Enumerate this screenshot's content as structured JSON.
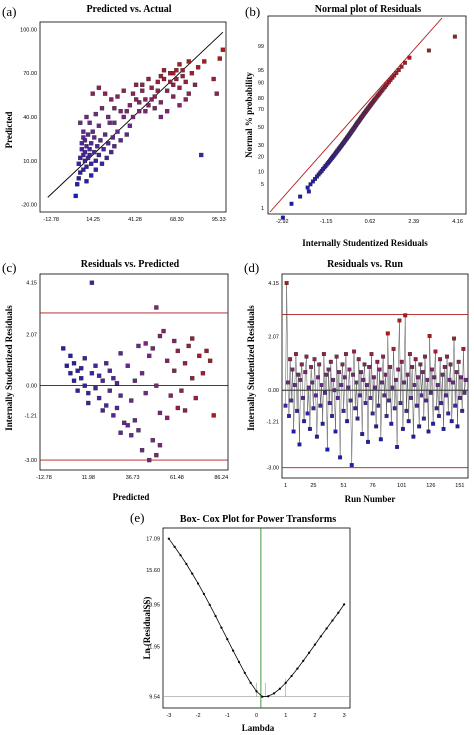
{
  "colors": {
    "low": "#1c1cb0",
    "mid": "#6a2a8a",
    "high": "#b01818",
    "refline": "#b01818",
    "diag": "#000000",
    "green": "#2e8b2e",
    "gray": "#9a9a9a"
  },
  "chart_data": [
    {
      "panel": "(a)",
      "type": "scatter",
      "title": "Predicted vs. Actual",
      "xlabel": "",
      "ylabel": "Predicted",
      "xticks": [
        "-12.78",
        "14.25",
        "41.28",
        "68.30",
        "95.33"
      ],
      "yticks": [
        "100.00",
        "70.00",
        "40.00",
        "10.00",
        "-20.00"
      ],
      "xlim": [
        -20,
        100
      ],
      "ylim": [
        -25,
        105
      ],
      "points": [
        [
          3,
          -14
        ],
        [
          4,
          -6
        ],
        [
          5,
          -2
        ],
        [
          5,
          8
        ],
        [
          6,
          2
        ],
        [
          6,
          12
        ],
        [
          7,
          18
        ],
        [
          7,
          22
        ],
        [
          8,
          4
        ],
        [
          8,
          14
        ],
        [
          8,
          26
        ],
        [
          9,
          10
        ],
        [
          9,
          16
        ],
        [
          9,
          24
        ],
        [
          10,
          -4
        ],
        [
          10,
          6
        ],
        [
          10,
          20
        ],
        [
          11,
          12
        ],
        [
          11,
          28
        ],
        [
          12,
          14
        ],
        [
          12,
          18
        ],
        [
          13,
          0
        ],
        [
          13,
          8
        ],
        [
          13,
          22
        ],
        [
          14,
          30
        ],
        [
          15,
          16
        ],
        [
          15,
          26
        ],
        [
          16,
          4
        ],
        [
          16,
          10
        ],
        [
          17,
          20
        ],
        [
          18,
          34
        ],
        [
          18,
          14
        ],
        [
          19,
          24
        ],
        [
          20,
          8
        ],
        [
          21,
          18
        ],
        [
          22,
          28
        ],
        [
          23,
          12
        ],
        [
          24,
          22
        ],
        [
          25,
          36
        ],
        [
          26,
          16
        ],
        [
          27,
          26
        ],
        [
          28,
          20
        ],
        [
          30,
          30
        ],
        [
          32,
          24
        ],
        [
          34,
          40
        ],
        [
          36,
          28
        ],
        [
          38,
          34
        ],
        [
          14,
          56
        ],
        [
          18,
          60
        ],
        [
          22,
          56
        ],
        [
          26,
          52
        ],
        [
          30,
          54
        ],
        [
          34,
          58
        ],
        [
          28,
          46
        ],
        [
          38,
          48
        ],
        [
          40,
          56
        ],
        [
          42,
          62
        ],
        [
          44,
          50
        ],
        [
          46,
          58
        ],
        [
          48,
          52
        ],
        [
          50,
          48
        ],
        [
          52,
          60
        ],
        [
          54,
          54
        ],
        [
          56,
          64
        ],
        [
          58,
          50
        ],
        [
          60,
          66
        ],
        [
          62,
          58
        ],
        [
          64,
          70
        ],
        [
          66,
          62
        ],
        [
          68,
          72
        ],
        [
          70,
          60
        ],
        [
          72,
          68
        ],
        [
          66,
          54
        ],
        [
          70,
          48
        ],
        [
          74,
          64
        ],
        [
          76,
          56
        ],
        [
          62,
          44
        ],
        [
          58,
          40
        ],
        [
          54,
          46
        ],
        [
          48,
          44
        ],
        [
          78,
          70
        ],
        [
          80,
          62
        ],
        [
          82,
          74
        ],
        [
          70,
          76
        ],
        [
          60,
          72
        ],
        [
          74,
          52
        ],
        [
          64,
          64
        ],
        [
          68,
          66
        ],
        [
          56,
          58
        ],
        [
          72,
          72
        ],
        [
          52,
          52
        ],
        [
          44,
          44
        ],
        [
          40,
          40
        ],
        [
          36,
          44
        ],
        [
          86,
          78
        ],
        [
          92,
          66
        ],
        [
          94,
          56
        ],
        [
          96,
          80
        ],
        [
          84,
          14
        ],
        [
          98,
          86
        ],
        [
          76,
          78
        ],
        [
          66,
          70
        ],
        [
          58,
          68
        ],
        [
          50,
          66
        ],
        [
          46,
          62
        ],
        [
          42,
          52
        ],
        [
          12,
          36
        ],
        [
          10,
          40
        ],
        [
          8,
          30
        ],
        [
          6,
          36
        ],
        [
          16,
          42
        ],
        [
          20,
          46
        ],
        [
          24,
          40
        ],
        [
          28,
          36
        ],
        [
          32,
          44
        ]
      ]
    },
    {
      "panel": "(b)",
      "type": "scatter",
      "title": "Normal plot of Residuals",
      "xlabel": "Internally Studentized Residuals",
      "ylabel": "Normal % probability",
      "xticks": [
        "-2.92",
        "-1.15",
        "0.62",
        "2.39",
        "4.16"
      ],
      "yticks": [
        "99",
        "95",
        "90",
        "80",
        "70",
        "50",
        "30",
        "20",
        "10",
        "5",
        "1"
      ],
      "xlim": [
        -3.5,
        4.5
      ],
      "ylim": [
        -2.5,
        3.2
      ]
    },
    {
      "panel": "(c)",
      "type": "scatter",
      "title": "Residuals vs. Predicted",
      "xlabel": "Predicted",
      "ylabel": "Internally Studentized Residuals",
      "xticks": [
        "-12.78",
        "11.98",
        "36.73",
        "61.48",
        "86.24"
      ],
      "yticks": [
        "4.15",
        "2.07",
        "0.00",
        "-1.21",
        "-3.00"
      ],
      "xlim": [
        -15,
        90
      ],
      "ylim": [
        -3.4,
        4.5
      ],
      "refline": 2.93,
      "refline_low": -3.0,
      "points": [
        [
          14,
          4.15
        ],
        [
          50,
          3.15
        ],
        [
          2,
          1.2
        ],
        [
          4,
          0.9
        ],
        [
          6,
          0.6
        ],
        [
          8,
          0.3
        ],
        [
          10,
          0.0
        ],
        [
          12,
          -0.3
        ],
        [
          14,
          0.5
        ],
        [
          16,
          0.8
        ],
        [
          18,
          -0.5
        ],
        [
          20,
          0.2
        ],
        [
          22,
          -0.8
        ],
        [
          24,
          0.6
        ],
        [
          26,
          -1.2
        ],
        [
          28,
          0.1
        ],
        [
          30,
          -0.4
        ],
        [
          6,
          -0.2
        ],
        [
          8,
          0.7
        ],
        [
          10,
          1.1
        ],
        [
          12,
          -0.7
        ],
        [
          16,
          -0.1
        ],
        [
          18,
          0.4
        ],
        [
          20,
          -1.0
        ],
        [
          22,
          0.9
        ],
        [
          24,
          -0.2
        ],
        [
          26,
          0.3
        ],
        [
          28,
          -0.9
        ],
        [
          30,
          1.3
        ],
        [
          32,
          -1.5
        ],
        [
          34,
          0.8
        ],
        [
          36,
          -0.6
        ],
        [
          38,
          0.2
        ],
        [
          40,
          -1.8
        ],
        [
          42,
          0.5
        ],
        [
          44,
          -0.3
        ],
        [
          46,
          1.2
        ],
        [
          48,
          -2.2
        ],
        [
          50,
          0.0
        ],
        [
          52,
          -1.1
        ],
        [
          40,
          1.6
        ],
        [
          44,
          1.7
        ],
        [
          48,
          1.5
        ],
        [
          52,
          2.0
        ],
        [
          56,
          1.0
        ],
        [
          58,
          -0.4
        ],
        [
          60,
          0.6
        ],
        [
          62,
          1.4
        ],
        [
          64,
          -0.2
        ],
        [
          66,
          0.9
        ],
        [
          68,
          1.6
        ],
        [
          70,
          0.3
        ],
        [
          72,
          -0.5
        ],
        [
          74,
          1.2
        ],
        [
          76,
          0.5
        ],
        [
          78,
          1.4
        ],
        [
          80,
          1.0
        ],
        [
          82,
          -1.2
        ],
        [
          70,
          1.9
        ],
        [
          60,
          1.8
        ],
        [
          54,
          2.2
        ],
        [
          36,
          -2.0
        ],
        [
          38,
          -1.4
        ],
        [
          42,
          -2.6
        ],
        [
          46,
          -3.0
        ],
        [
          50,
          -2.8
        ],
        [
          52,
          -2.4
        ],
        [
          34,
          -1.6
        ],
        [
          30,
          -1.9
        ],
        [
          56,
          -1.3
        ],
        [
          62,
          -0.9
        ],
        [
          66,
          -1.0
        ],
        [
          4,
          0.2
        ],
        [
          2,
          0.5
        ],
        [
          0,
          0.8
        ],
        [
          -2,
          1.5
        ]
      ]
    },
    {
      "panel": "(d)",
      "type": "line",
      "title": "Residuals vs. Run",
      "xlabel": "Run Number",
      "ylabel": "Internally Studentized Residuals",
      "xticks": [
        "1",
        "25",
        "51",
        "76",
        "101",
        "126",
        "151"
      ],
      "yticks": [
        "4.15",
        "2.07",
        "0.00",
        "-1.21",
        "-3.00"
      ],
      "xlim": [
        -2,
        158
      ],
      "ylim": [
        -3.4,
        4.5
      ],
      "refline": 2.93,
      "refline_low": -3.0,
      "values": [
        -0.6,
        4.15,
        0.3,
        -1.0,
        1.2,
        -0.4,
        0.8,
        -1.6,
        0.2,
        1.4,
        -0.8,
        0.6,
        -2.1,
        0.4,
        1.0,
        -0.3,
        -1.2,
        0.7,
        1.3,
        -0.9,
        0.1,
        -1.5,
        0.9,
        0.3,
        -0.7,
        1.2,
        -0.2,
        -1.8,
        0.5,
        1.0,
        -0.6,
        0.2,
        -1.3,
        1.4,
        -0.1,
        0.6,
        -2.3,
        0.8,
        -0.5,
        1.1,
        -1.0,
        0.4,
        0.0,
        -1.6,
        1.3,
        -0.3,
        0.7,
        -2.6,
        0.2,
        1.0,
        -0.8,
        0.5,
        1.4,
        -1.2,
        0.1,
        0.8,
        -0.4,
        -2.9,
        0.6,
        1.5,
        -0.7,
        0.3,
        -1.1,
        1.2,
        -0.2,
        0.7,
        -1.7,
        0.4,
        1.0,
        -0.5,
        0.2,
        -2.0,
        0.9,
        -0.3,
        1.4,
        -0.9,
        0.5,
        0.1,
        -1.4,
        1.1,
        -0.6,
        0.8,
        -1.9,
        0.3,
        1.3,
        -0.2,
        0.6,
        -1.0,
        2.2,
        -0.4,
        0.9,
        -1.3,
        0.1,
        1.6,
        -0.7,
        0.4,
        -2.2,
        0.8,
        2.7,
        -0.5,
        1.1,
        -1.5,
        0.3,
        2.9,
        -0.8,
        0.6,
        -1.2,
        1.4,
        -0.3,
        0.9,
        -1.8,
        0.2,
        1.2,
        -0.6,
        0.5,
        -1.4,
        1.0,
        -0.2,
        0.7,
        -1.1,
        1.3,
        -0.4,
        0.4,
        -1.6,
        2.1,
        -0.1,
        0.8,
        -1.3,
        0.5,
        1.5,
        -0.7,
        0.2,
        -1.0,
        1.2,
        -0.5,
        0.6,
        -1.5,
        0.9,
        -0.2,
        1.3,
        -0.9,
        0.4,
        1.0,
        -1.2,
        0.3,
        2.0,
        -0.6,
        0.7,
        -1.4,
        1.1,
        -0.3,
        0.5,
        -0.8,
        1.6,
        -0.1,
        0.4
      ]
    },
    {
      "panel": "(e)",
      "type": "line",
      "title": "Box- Cox Plot for Power Transforms",
      "xlabel": "Lambda",
      "ylabel": "Ln (ResidualSS)",
      "xticks": [
        "-3",
        "-2",
        "-1",
        "0",
        "1",
        "2",
        "3"
      ],
      "yticks": [
        "17.09",
        "15.60",
        "13.95",
        "11.95",
        "9.54"
      ],
      "xlim": [
        -3.2,
        3.2
      ],
      "ylim": [
        9.0,
        17.6
      ],
      "current_lambda": 0.15,
      "ci": [
        0.0,
        0.3
      ],
      "best_lambda": 1.0,
      "min_ref": 9.54,
      "x": [
        -3.0,
        -2.8,
        -2.6,
        -2.4,
        -2.2,
        -2.0,
        -1.8,
        -1.6,
        -1.4,
        -1.2,
        -1.0,
        -0.8,
        -0.6,
        -0.4,
        -0.2,
        0.0,
        0.2,
        0.4,
        0.6,
        0.8,
        1.0,
        1.2,
        1.4,
        1.6,
        1.8,
        2.0,
        2.2,
        2.4,
        2.6,
        2.8,
        3.0
      ],
      "y": [
        17.09,
        16.7,
        16.3,
        15.88,
        15.42,
        14.95,
        14.45,
        13.93,
        13.39,
        12.84,
        12.29,
        11.74,
        11.2,
        10.68,
        10.2,
        9.8,
        9.54,
        9.56,
        9.7,
        9.92,
        10.2,
        10.53,
        10.88,
        11.25,
        11.64,
        12.03,
        12.42,
        12.8,
        13.18,
        13.55,
        13.95
      ]
    }
  ]
}
